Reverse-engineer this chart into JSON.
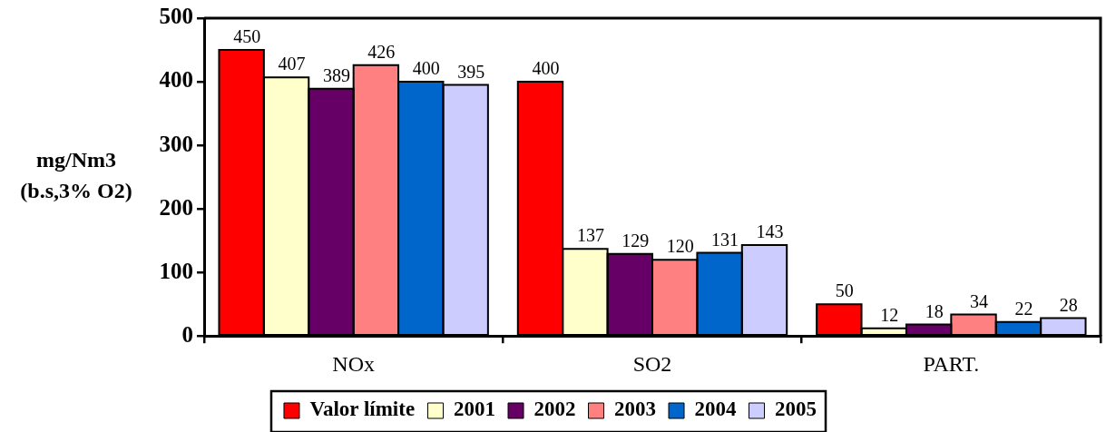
{
  "chart_data": {
    "type": "bar",
    "ylabel": "mg/Nm3\n(b.s,3% O2)",
    "categories": [
      "NOx",
      "SO2",
      "PART."
    ],
    "series": [
      {
        "name": "Valor límite",
        "color": "#ff0000",
        "values": [
          450,
          400,
          50
        ]
      },
      {
        "name": "2001",
        "color": "#ffffcc",
        "values": [
          407,
          137,
          12
        ]
      },
      {
        "name": "2002",
        "color": "#660066",
        "values": [
          389,
          129,
          18
        ]
      },
      {
        "name": "2003",
        "color": "#ff8080",
        "values": [
          426,
          120,
          34
        ]
      },
      {
        "name": "2004",
        "color": "#0066cc",
        "values": [
          400,
          131,
          22
        ]
      },
      {
        "name": "2005",
        "color": "#ccccff",
        "values": [
          395,
          143,
          28
        ]
      }
    ],
    "ylim": [
      0,
      500
    ],
    "yticks": [
      0,
      100,
      200,
      300,
      400,
      500
    ],
    "data_labels": true,
    "legend": "bottom",
    "grid": false
  }
}
